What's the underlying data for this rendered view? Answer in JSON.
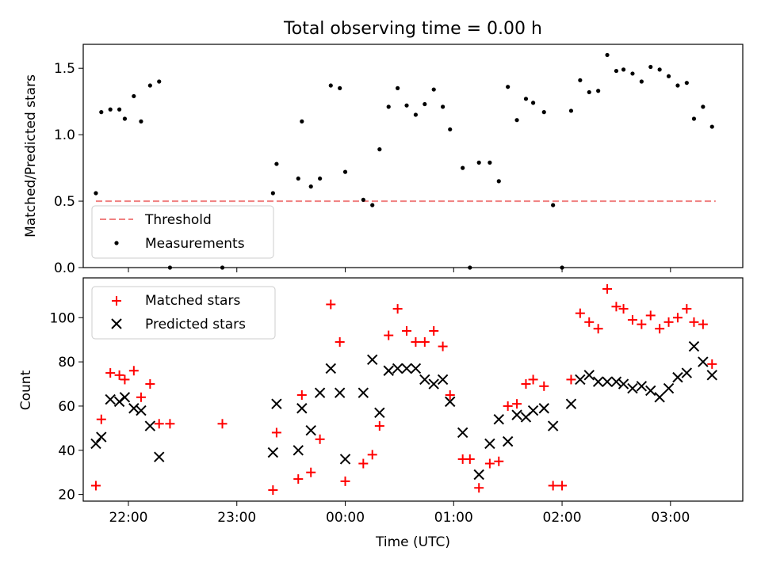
{
  "chart_data": [
    {
      "type": "scatter",
      "title": "Total observing time = 0.00 h",
      "xlabel": "",
      "ylabel": "Matched/Predicted stars",
      "yticks": [
        "0.0",
        "0.5",
        "1.0",
        "1.5"
      ],
      "ylim": [
        0,
        1.68
      ],
      "xlim": [
        "21:35",
        "03:40"
      ],
      "legend_position": "lower-left",
      "threshold": {
        "name": "Threshold",
        "value": 0.5,
        "color": "#f08080",
        "x": [
          "21:42",
          "03:25"
        ]
      },
      "series": [
        {
          "name": "Measurements",
          "color": "#000000",
          "points": [
            [
              "21:42",
              0.56
            ],
            [
              "21:45",
              1.17
            ],
            [
              "21:50",
              1.19
            ],
            [
              "21:55",
              1.19
            ],
            [
              "21:58",
              1.12
            ],
            [
              "22:03",
              1.29
            ],
            [
              "22:07",
              1.1
            ],
            [
              "22:12",
              1.37
            ],
            [
              "22:17",
              1.4
            ],
            [
              "22:23",
              0.0
            ],
            [
              "22:52",
              0.0
            ],
            [
              "23:20",
              0.56
            ],
            [
              "23:22",
              0.78
            ],
            [
              "23:34",
              0.67
            ],
            [
              "23:36",
              1.1
            ],
            [
              "23:41",
              0.61
            ],
            [
              "23:46",
              0.67
            ],
            [
              "23:52",
              1.37
            ],
            [
              "23:57",
              1.35
            ],
            [
              "00:00",
              0.72
            ],
            [
              "00:10",
              0.51
            ],
            [
              "00:15",
              0.47
            ],
            [
              "00:19",
              0.89
            ],
            [
              "00:24",
              1.21
            ],
            [
              "00:29",
              1.35
            ],
            [
              "00:34",
              1.22
            ],
            [
              "00:39",
              1.15
            ],
            [
              "00:44",
              1.23
            ],
            [
              "00:49",
              1.34
            ],
            [
              "00:54",
              1.21
            ],
            [
              "00:58",
              1.04
            ],
            [
              "01:05",
              0.75
            ],
            [
              "01:09",
              0.0
            ],
            [
              "01:14",
              0.79
            ],
            [
              "01:20",
              0.79
            ],
            [
              "01:25",
              0.65
            ],
            [
              "01:30",
              1.36
            ],
            [
              "01:35",
              1.11
            ],
            [
              "01:40",
              1.27
            ],
            [
              "01:44",
              1.24
            ],
            [
              "01:50",
              1.17
            ],
            [
              "01:55",
              0.47
            ],
            [
              "02:00",
              0.0
            ],
            [
              "02:05",
              1.18
            ],
            [
              "02:10",
              1.41
            ],
            [
              "02:15",
              1.32
            ],
            [
              "02:20",
              1.33
            ],
            [
              "02:25",
              1.6
            ],
            [
              "02:30",
              1.48
            ],
            [
              "02:34",
              1.49
            ],
            [
              "02:39",
              1.46
            ],
            [
              "02:44",
              1.4
            ],
            [
              "02:49",
              1.51
            ],
            [
              "02:54",
              1.49
            ],
            [
              "02:59",
              1.44
            ],
            [
              "03:04",
              1.37
            ],
            [
              "03:09",
              1.39
            ],
            [
              "03:13",
              1.12
            ],
            [
              "03:18",
              1.21
            ],
            [
              "03:23",
              1.06
            ]
          ]
        }
      ]
    },
    {
      "type": "scatter",
      "title": "",
      "xlabel": "Time (UTC)",
      "ylabel": "Count",
      "xticks": [
        "22:00",
        "23:00",
        "00:00",
        "01:00",
        "02:00",
        "03:00"
      ],
      "yticks": [
        "20",
        "40",
        "60",
        "80",
        "100"
      ],
      "ylim": [
        17,
        118
      ],
      "xlim": [
        "21:35",
        "03:40"
      ],
      "legend_position": "top-left",
      "series": [
        {
          "name": "Matched stars",
          "marker": "plus",
          "color": "#ff0000",
          "points": [
            [
              "21:42",
              24
            ],
            [
              "21:45",
              54
            ],
            [
              "21:50",
              75
            ],
            [
              "21:55",
              74
            ],
            [
              "21:58",
              72
            ],
            [
              "22:03",
              76
            ],
            [
              "22:07",
              64
            ],
            [
              "22:12",
              70
            ],
            [
              "22:17",
              52
            ],
            [
              "22:23",
              52
            ],
            [
              "22:52",
              52
            ],
            [
              "23:20",
              22
            ],
            [
              "23:22",
              48
            ],
            [
              "23:34",
              27
            ],
            [
              "23:36",
              65
            ],
            [
              "23:41",
              30
            ],
            [
              "23:46",
              45
            ],
            [
              "23:52",
              106
            ],
            [
              "23:57",
              89
            ],
            [
              "00:00",
              26
            ],
            [
              "00:10",
              34
            ],
            [
              "00:15",
              38
            ],
            [
              "00:19",
              51
            ],
            [
              "00:24",
              92
            ],
            [
              "00:29",
              104
            ],
            [
              "00:34",
              94
            ],
            [
              "00:39",
              89
            ],
            [
              "00:44",
              89
            ],
            [
              "00:49",
              94
            ],
            [
              "00:54",
              87
            ],
            [
              "00:58",
              65
            ],
            [
              "01:05",
              36
            ],
            [
              "01:09",
              36
            ],
            [
              "01:14",
              23
            ],
            [
              "01:20",
              34
            ],
            [
              "01:25",
              35
            ],
            [
              "01:30",
              60
            ],
            [
              "01:35",
              61
            ],
            [
              "01:40",
              70
            ],
            [
              "01:44",
              72
            ],
            [
              "01:50",
              69
            ],
            [
              "01:55",
              24
            ],
            [
              "02:00",
              24
            ],
            [
              "02:05",
              72
            ],
            [
              "02:10",
              102
            ],
            [
              "02:15",
              98
            ],
            [
              "02:20",
              95
            ],
            [
              "02:25",
              113
            ],
            [
              "02:30",
              105
            ],
            [
              "02:34",
              104
            ],
            [
              "02:39",
              99
            ],
            [
              "02:44",
              97
            ],
            [
              "02:49",
              101
            ],
            [
              "02:54",
              95
            ],
            [
              "02:59",
              98
            ],
            [
              "03:04",
              100
            ],
            [
              "03:09",
              104
            ],
            [
              "03:13",
              98
            ],
            [
              "03:18",
              97
            ],
            [
              "03:23",
              79
            ]
          ]
        },
        {
          "name": "Predicted stars",
          "marker": "x",
          "color": "#000000",
          "points": [
            [
              "21:42",
              43
            ],
            [
              "21:45",
              46
            ],
            [
              "21:50",
              63
            ],
            [
              "21:55",
              62
            ],
            [
              "21:58",
              64
            ],
            [
              "22:03",
              59
            ],
            [
              "22:07",
              58
            ],
            [
              "22:12",
              51
            ],
            [
              "22:17",
              37
            ],
            [
              "23:20",
              39
            ],
            [
              "23:22",
              61
            ],
            [
              "23:34",
              40
            ],
            [
              "23:36",
              59
            ],
            [
              "23:41",
              49
            ],
            [
              "23:46",
              66
            ],
            [
              "23:52",
              77
            ],
            [
              "23:57",
              66
            ],
            [
              "00:00",
              36
            ],
            [
              "00:10",
              66
            ],
            [
              "00:15",
              81
            ],
            [
              "00:19",
              57
            ],
            [
              "00:24",
              76
            ],
            [
              "00:29",
              77
            ],
            [
              "00:34",
              77
            ],
            [
              "00:39",
              77
            ],
            [
              "00:44",
              72
            ],
            [
              "00:49",
              70
            ],
            [
              "00:54",
              72
            ],
            [
              "00:58",
              62
            ],
            [
              "01:05",
              48
            ],
            [
              "01:14",
              29
            ],
            [
              "01:20",
              43
            ],
            [
              "01:25",
              54
            ],
            [
              "01:30",
              44
            ],
            [
              "01:35",
              56
            ],
            [
              "01:40",
              55
            ],
            [
              "01:44",
              58
            ],
            [
              "01:50",
              59
            ],
            [
              "01:55",
              51
            ],
            [
              "02:05",
              61
            ],
            [
              "02:10",
              72
            ],
            [
              "02:15",
              74
            ],
            [
              "02:20",
              71
            ],
            [
              "02:25",
              71
            ],
            [
              "02:30",
              71
            ],
            [
              "02:34",
              70
            ],
            [
              "02:39",
              68
            ],
            [
              "02:44",
              69
            ],
            [
              "02:49",
              67
            ],
            [
              "02:54",
              64
            ],
            [
              "02:59",
              68
            ],
            [
              "03:04",
              73
            ],
            [
              "03:09",
              75
            ],
            [
              "03:13",
              87
            ],
            [
              "03:18",
              80
            ],
            [
              "03:23",
              74
            ]
          ]
        }
      ]
    }
  ]
}
